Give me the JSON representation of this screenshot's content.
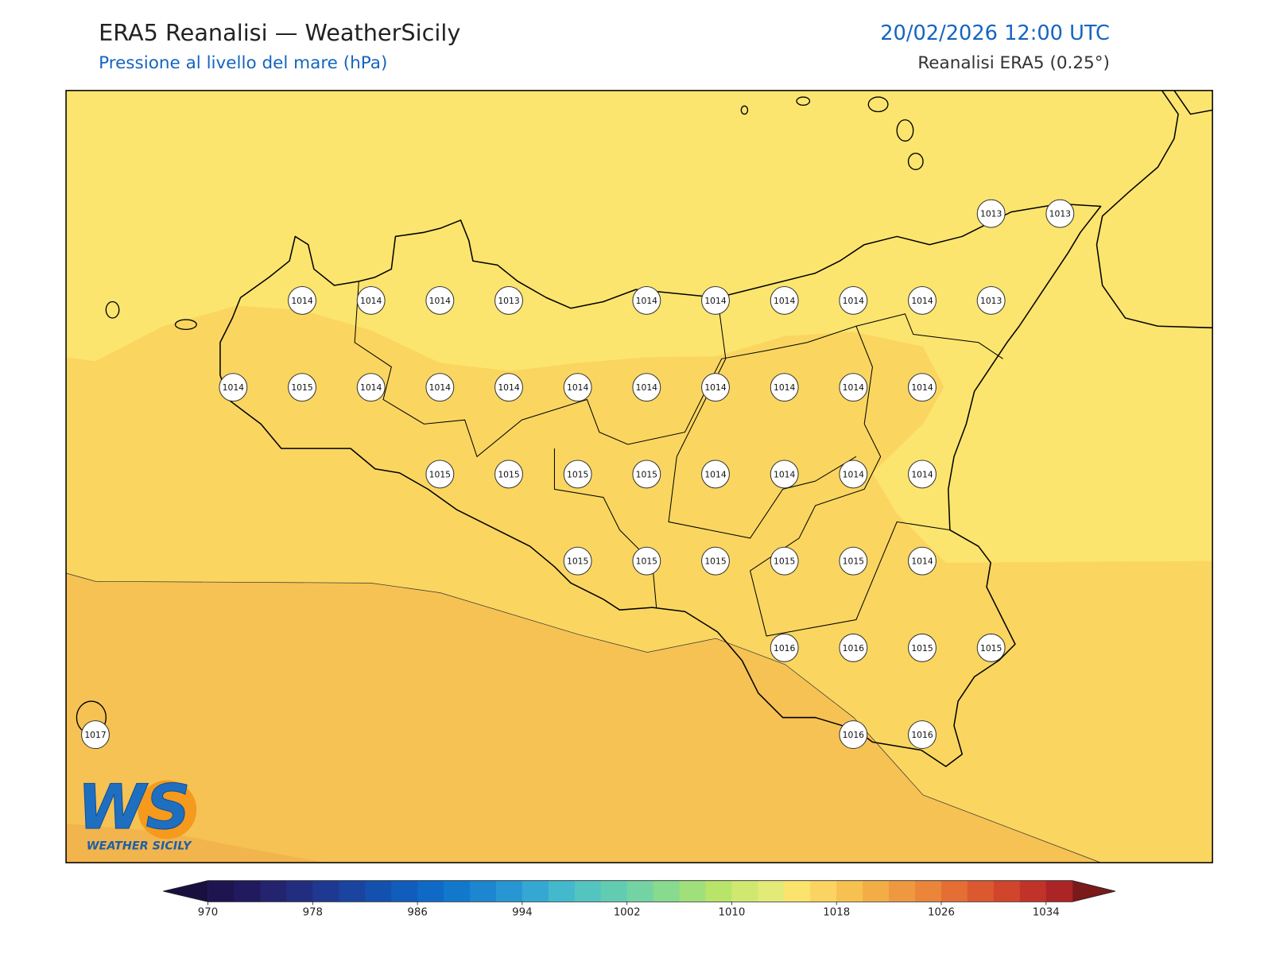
{
  "header": {
    "title": "ERA5 Reanalisi — WeatherSicily",
    "subtitle": "Pressione al livello del mare (hPa)",
    "date": "20/02/2026 12:00 UTC",
    "source": "Reanalisi ERA5 (0.25°)"
  },
  "pressure_grid": {
    "rows": [
      [
        null,
        null,
        null,
        null,
        null,
        null,
        null,
        null,
        null,
        null,
        null,
        null,
        null,
        1013,
        1013
      ],
      [
        null,
        null,
        null,
        1014,
        1014,
        1014,
        1013,
        null,
        1014,
        1014,
        1014,
        1014,
        1014,
        1013,
        null
      ],
      [
        null,
        null,
        1014,
        1015,
        1014,
        1014,
        1014,
        1014,
        1014,
        1014,
        1014,
        1014,
        1014,
        null,
        null
      ],
      [
        null,
        null,
        null,
        null,
        null,
        1015,
        1015,
        1015,
        1015,
        1014,
        1014,
        1014,
        1014,
        null,
        null
      ],
      [
        null,
        null,
        null,
        null,
        null,
        null,
        null,
        1015,
        1015,
        1015,
        1015,
        1015,
        1014,
        null,
        null
      ],
      [
        null,
        null,
        null,
        null,
        null,
        null,
        null,
        null,
        null,
        null,
        1016,
        1016,
        1015,
        1015,
        null
      ],
      [
        1017,
        null,
        null,
        null,
        null,
        null,
        null,
        null,
        null,
        null,
        null,
        1016,
        1016,
        null,
        null
      ]
    ]
  },
  "colorbar": {
    "levels": [
      970,
      972,
      974,
      976,
      978,
      980,
      982,
      984,
      986,
      988,
      990,
      992,
      994,
      996,
      998,
      1000,
      1002,
      1004,
      1006,
      1008,
      1010,
      1012,
      1014,
      1016,
      1018,
      1020,
      1022,
      1024,
      1026,
      1028,
      1030,
      1032,
      1034,
      1036
    ],
    "colors": [
      "#1e1450",
      "#221a5e",
      "#24236e",
      "#232d80",
      "#1f3891",
      "#1a449f",
      "#1450ad",
      "#105dbb",
      "#0e6ac6",
      "#1278cc",
      "#1c86d0",
      "#2896d2",
      "#34a8d2",
      "#44b8cc",
      "#54c4c0",
      "#62ccb2",
      "#74d3a2",
      "#88da8e",
      "#a0e07a",
      "#b8e46a",
      "#d0e870",
      "#e4ea78",
      "#fbe36e",
      "#fad362",
      "#f6c151",
      "#f2ad47",
      "#ee9940",
      "#ea853a",
      "#e46e34",
      "#dc582f",
      "#d0452c",
      "#c13329",
      "#ab2426"
    ],
    "under_color": "#1a1040",
    "over_color": "#7a1a1a",
    "ticks": [
      970,
      978,
      986,
      994,
      1002,
      1010,
      1018,
      1026,
      1034
    ]
  },
  "logo": {
    "letters": "WS",
    "name": "WEATHER SICILY"
  }
}
